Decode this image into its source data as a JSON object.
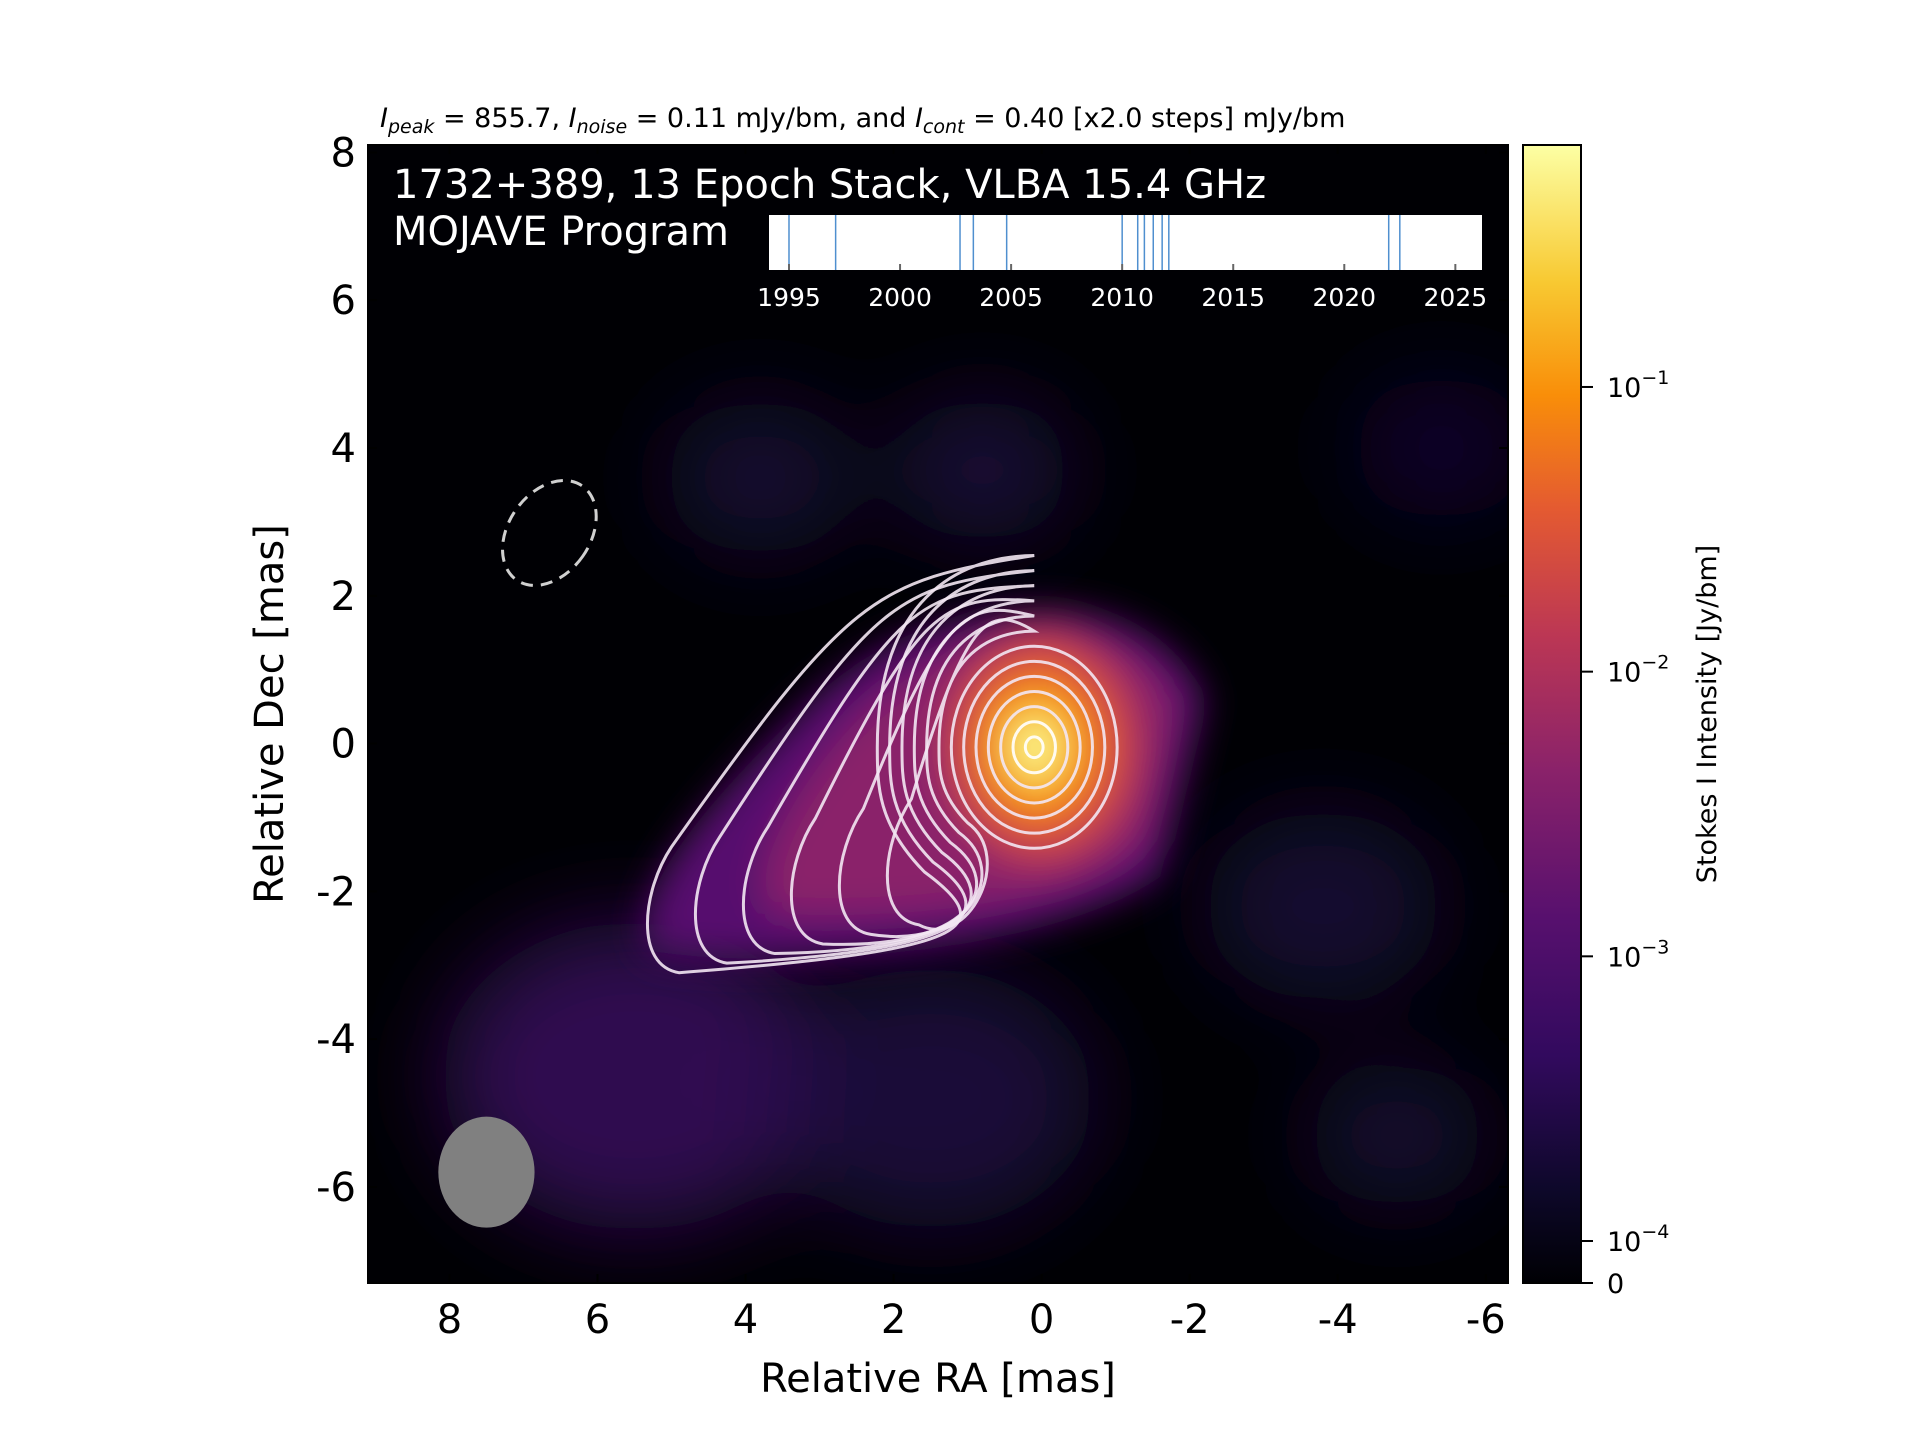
{
  "chart_data": {
    "type": "heatmap",
    "title_parts": {
      "peak_symbol": "I",
      "peak_sub": "peak",
      "peak_text": " = 855.7, ",
      "noise_symbol": "I",
      "noise_sub": "noise",
      "noise_text": " = 0.11 mJy/bm, and ",
      "cont_symbol": "I",
      "cont_sub": "cont",
      "cont_text": " = 0.40 [x2.0 steps] mJy/bm"
    },
    "annotation_line1": "1732+389, 13 Epoch Stack, VLBA 15.4 GHz",
    "annotation_line2": "MOJAVE Program",
    "xlabel": "Relative RA [mas]",
    "ylabel": "Relative Dec [mas]",
    "xlim": [
      9.1,
      -6.3
    ],
    "ylim": [
      -7.3,
      8.1
    ],
    "x_ticks": [
      8,
      6,
      4,
      2,
      0,
      -2,
      -4,
      -6
    ],
    "x_tick_labels": [
      "8",
      "6",
      "4",
      "2",
      "0",
      "-2",
      "-4",
      "-6"
    ],
    "y_ticks": [
      8,
      6,
      4,
      2,
      0,
      -2,
      -4,
      -6
    ],
    "y_tick_labels": [
      "8",
      "6",
      "4",
      "2",
      "0",
      "-2",
      "-4",
      "-6"
    ],
    "colormap": "inferno",
    "colorbar": {
      "label": "Stokes I Intensity [Jy/bm]",
      "scale": "log",
      "ticks": [
        0,
        0.0001,
        0.001,
        0.01,
        0.1
      ],
      "tick_labels": [
        {
          "base": "0",
          "exp": ""
        },
        {
          "base": "10",
          "exp": "−4"
        },
        {
          "base": "10",
          "exp": "−3"
        },
        {
          "base": "10",
          "exp": "−2"
        },
        {
          "base": "10",
          "exp": "−1"
        }
      ]
    },
    "source": {
      "peak_ra": 0.1,
      "peak_dec": -0.05,
      "peak_jy": 0.8557
    },
    "contour_count": 13,
    "beam": {
      "ra": 7.5,
      "dec": -5.8,
      "major_mas": 1.5,
      "minor_mas": 1.3,
      "pa_deg": 0,
      "color": "#808080"
    },
    "dashed_ellipse": {
      "ra": 6.65,
      "dec": 2.85,
      "major_mas": 1.55,
      "minor_mas": 1.1,
      "pa_deg": -35
    },
    "epoch_inset": {
      "xlim": [
        1994.1,
        2026.2
      ],
      "ticks": [
        1995,
        2000,
        2005,
        2010,
        2015,
        2020,
        2025
      ],
      "tick_labels": [
        "1995",
        "2000",
        "2005",
        "2010",
        "2015",
        "2020",
        "2025"
      ],
      "epochs": [
        1995.0,
        1997.1,
        2002.7,
        2003.3,
        2004.8,
        2010.0,
        2010.7,
        2011.0,
        2011.4,
        2011.8,
        2012.1,
        2022.0,
        2022.5
      ],
      "line_color": "#4f8fcf"
    }
  }
}
